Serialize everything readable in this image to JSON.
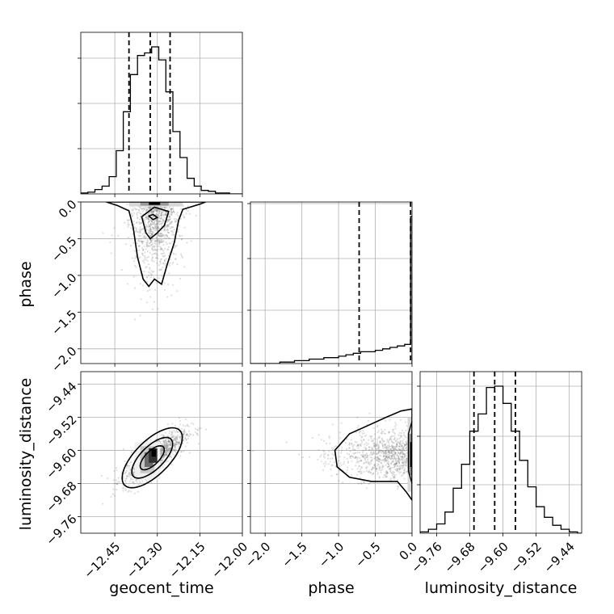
{
  "chart_data": [
    {
      "type": "histogram",
      "panel": "geocent_time",
      "grid": true,
      "x_ticks": [
        "−12.45",
        "−12.30",
        "−12.15",
        "−12.00"
      ],
      "xlim": [
        -12.57,
        -12.0
      ],
      "bin_edges": [
        -12.57,
        -12.545,
        -12.52,
        -12.495,
        -12.47,
        -12.445,
        -12.42,
        -12.395,
        -12.37,
        -12.345,
        -12.32,
        -12.295,
        -12.27,
        -12.245,
        -12.22,
        -12.195,
        -12.17,
        -12.145,
        -12.12,
        -12.095,
        -12.07,
        -12.045,
        -12.02,
        -12.0
      ],
      "counts": [
        1,
        2,
        5,
        9,
        20,
        50,
        95,
        138,
        160,
        163,
        170,
        155,
        118,
        72,
        42,
        18,
        9,
        4,
        3,
        1,
        1,
        0,
        0
      ],
      "quantile_lines": [
        -12.4,
        -12.325,
        -12.255
      ]
    },
    {
      "type": "scatter-density",
      "panel": "geocent_time vs phase",
      "x": "geocent_time",
      "y": "phase",
      "grid": true,
      "y_ticks": [
        "0.0",
        "−0.5",
        "−1.0",
        "−1.5",
        "−2.0"
      ],
      "xlim": [
        -12.57,
        -12.0
      ],
      "ylim": [
        -2.2,
        0.0
      ],
      "ylabel": "phase"
    },
    {
      "type": "histogram",
      "panel": "phase",
      "grid": true,
      "xlim": [
        -2.2,
        0.0
      ],
      "bin_edges": [
        -2.2,
        -2.1,
        -2.0,
        -1.9,
        -1.8,
        -1.7,
        -1.6,
        -1.5,
        -1.4,
        -1.3,
        -1.2,
        -1.1,
        -1.0,
        -0.9,
        -0.8,
        -0.7,
        -0.6,
        -0.5,
        -0.4,
        -0.3,
        -0.2,
        -0.1,
        -0.02,
        0.0
      ],
      "counts": [
        0,
        0,
        0,
        0,
        1,
        1,
        2,
        2,
        3,
        3,
        4,
        4,
        5,
        6,
        7,
        8,
        8,
        9,
        10,
        11,
        12,
        13,
        100
      ],
      "quantile_lines": [
        -0.72,
        -0.02
      ]
    },
    {
      "type": "scatter-density",
      "panel": "geocent_time vs luminosity_distance",
      "x": "geocent_time",
      "y": "luminosity_distance",
      "grid": true,
      "x_ticks": [
        "−12.45",
        "−12.30",
        "−12.15",
        "−12.00"
      ],
      "y_ticks": [
        "−9.44",
        "−9.52",
        "−9.60",
        "−9.68",
        "−9.76"
      ],
      "xlim": [
        -12.57,
        -12.0
      ],
      "ylim": [
        -9.8,
        -9.41
      ],
      "xlabel": "geocent_time",
      "ylabel": "luminosity_distance"
    },
    {
      "type": "scatter-density",
      "panel": "phase vs luminosity_distance",
      "x": "phase",
      "y": "luminosity_distance",
      "grid": true,
      "x_ticks": [
        "−2.0",
        "−1.5",
        "−1.0",
        "−0.5",
        "0.0"
      ],
      "xlim": [
        -2.2,
        0.0
      ],
      "ylim": [
        -9.8,
        -9.41
      ],
      "xlabel": "phase"
    },
    {
      "type": "histogram",
      "panel": "luminosity_distance",
      "grid": true,
      "x_ticks": [
        "−9.76",
        "−9.68",
        "−9.60",
        "−9.52",
        "−9.44"
      ],
      "xlim": [
        -9.8,
        -9.41
      ],
      "bin_edges": [
        -9.8,
        -9.78,
        -9.76,
        -9.74,
        -9.72,
        -9.7,
        -9.68,
        -9.66,
        -9.64,
        -9.62,
        -9.6,
        -9.58,
        -9.56,
        -9.54,
        -9.52,
        -9.5,
        -9.48,
        -9.46,
        -9.44,
        -9.42,
        -9.41
      ],
      "counts": [
        1,
        3,
        7,
        16,
        34,
        52,
        77,
        90,
        110,
        111,
        98,
        77,
        55,
        35,
        20,
        12,
        6,
        3,
        1,
        0
      ],
      "quantile_lines": [
        -9.67,
        -9.62,
        -9.57
      ],
      "xlabel": "luminosity_distance"
    }
  ]
}
